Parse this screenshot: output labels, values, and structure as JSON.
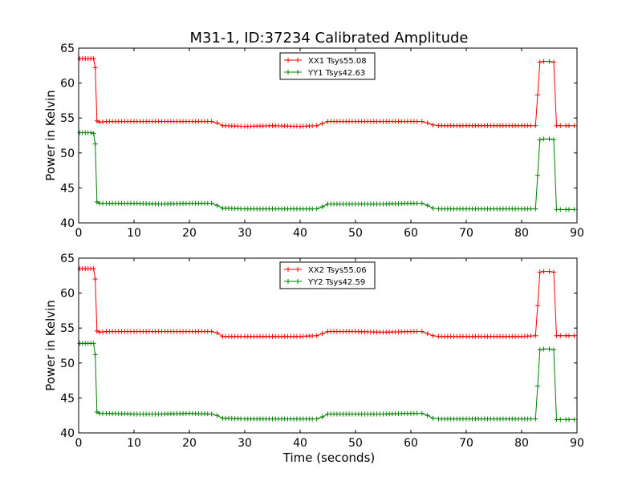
{
  "title": "M31-1, ID:37234 Calibrated Amplitude",
  "xlabel": "Time (seconds)",
  "chart_data": [
    {
      "type": "line",
      "title": "M31-1, ID:37234 Calibrated Amplitude",
      "xlabel": "",
      "ylabel": "Power in Kelvin",
      "xlim": [
        0,
        90
      ],
      "ylim": [
        40,
        65
      ],
      "xticks": [
        "0",
        "10",
        "20",
        "30",
        "40",
        "50",
        "60",
        "70",
        "80",
        "90"
      ],
      "yticks": [
        "40",
        "45",
        "50",
        "55",
        "60",
        "65"
      ],
      "legend_position": "top-center",
      "grid": false,
      "series": [
        {
          "name": "XX1 Tsys55.08",
          "color": "#ff0000",
          "marker": "plus",
          "points": [
            [
              0.2,
              63.5
            ],
            [
              0.7,
              63.5
            ],
            [
              1.2,
              63.5
            ],
            [
              1.7,
              63.5
            ],
            [
              2.2,
              63.5
            ],
            [
              2.7,
              63.5
            ],
            [
              3.0,
              62.2
            ],
            [
              3.3,
              54.6
            ],
            [
              3.8,
              54.4
            ],
            [
              5,
              54.5
            ],
            [
              10,
              54.5
            ],
            [
              15,
              54.5
            ],
            [
              20,
              54.5
            ],
            [
              24,
              54.5
            ],
            [
              25,
              54.3
            ],
            [
              26,
              53.9
            ],
            [
              30,
              53.8
            ],
            [
              35,
              53.9
            ],
            [
              40,
              53.8
            ],
            [
              43,
              53.9
            ],
            [
              44,
              54.2
            ],
            [
              45,
              54.5
            ],
            [
              50,
              54.5
            ],
            [
              55,
              54.5
            ],
            [
              60,
              54.5
            ],
            [
              62,
              54.5
            ],
            [
              63,
              54.3
            ],
            [
              64,
              54.0
            ],
            [
              65,
              53.9
            ],
            [
              70,
              53.9
            ],
            [
              75,
              53.9
            ],
            [
              80,
              53.9
            ],
            [
              82.5,
              53.9
            ],
            [
              82.9,
              58.3
            ],
            [
              83.3,
              63.0
            ],
            [
              84,
              63.1
            ],
            [
              85,
              63.1
            ],
            [
              85.8,
              63.0
            ],
            [
              86.3,
              53.9
            ],
            [
              87,
              53.9
            ],
            [
              88,
              53.9
            ],
            [
              89.5,
              53.9
            ]
          ]
        },
        {
          "name": "YY1 Tsys42.63",
          "color": "#008000",
          "marker": "plus",
          "points": [
            [
              0.2,
              52.9
            ],
            [
              0.7,
              52.9
            ],
            [
              1.2,
              52.9
            ],
            [
              1.7,
              52.9
            ],
            [
              2.2,
              52.9
            ],
            [
              2.7,
              52.8
            ],
            [
              3.0,
              51.3
            ],
            [
              3.3,
              43.0
            ],
            [
              3.8,
              42.8
            ],
            [
              5,
              42.8
            ],
            [
              10,
              42.8
            ],
            [
              15,
              42.7
            ],
            [
              20,
              42.8
            ],
            [
              24,
              42.8
            ],
            [
              25,
              42.5
            ],
            [
              26,
              42.1
            ],
            [
              30,
              42.0
            ],
            [
              35,
              42.0
            ],
            [
              40,
              42.0
            ],
            [
              43,
              42.0
            ],
            [
              44,
              42.3
            ],
            [
              45,
              42.7
            ],
            [
              50,
              42.7
            ],
            [
              55,
              42.7
            ],
            [
              60,
              42.8
            ],
            [
              62,
              42.8
            ],
            [
              63,
              42.5
            ],
            [
              64,
              42.1
            ],
            [
              65,
              42.0
            ],
            [
              70,
              42.0
            ],
            [
              75,
              42.0
            ],
            [
              80,
              42.0
            ],
            [
              82.5,
              42.0
            ],
            [
              82.9,
              46.8
            ],
            [
              83.3,
              51.9
            ],
            [
              84,
              52.0
            ],
            [
              85,
              52.0
            ],
            [
              85.8,
              51.9
            ],
            [
              86.3,
              41.9
            ],
            [
              87,
              41.9
            ],
            [
              88,
              41.9
            ],
            [
              89.5,
              41.9
            ]
          ]
        }
      ]
    },
    {
      "type": "line",
      "title": "",
      "xlabel": "Time (seconds)",
      "ylabel": "Power in Kelvin",
      "xlim": [
        0,
        90
      ],
      "ylim": [
        40,
        65
      ],
      "xticks": [
        "0",
        "10",
        "20",
        "30",
        "40",
        "50",
        "60",
        "70",
        "80",
        "90"
      ],
      "yticks": [
        "40",
        "45",
        "50",
        "55",
        "60",
        "65"
      ],
      "legend_position": "top-center",
      "grid": false,
      "series": [
        {
          "name": "XX2 Tsys55.06",
          "color": "#ff0000",
          "marker": "plus",
          "points": [
            [
              0.2,
              63.5
            ],
            [
              0.7,
              63.5
            ],
            [
              1.2,
              63.5
            ],
            [
              1.7,
              63.5
            ],
            [
              2.2,
              63.5
            ],
            [
              2.7,
              63.5
            ],
            [
              3.0,
              62.0
            ],
            [
              3.3,
              54.6
            ],
            [
              3.8,
              54.4
            ],
            [
              5,
              54.5
            ],
            [
              10,
              54.5
            ],
            [
              15,
              54.5
            ],
            [
              20,
              54.5
            ],
            [
              24,
              54.5
            ],
            [
              25,
              54.3
            ],
            [
              26,
              53.8
            ],
            [
              30,
              53.8
            ],
            [
              35,
              53.8
            ],
            [
              40,
              53.8
            ],
            [
              43,
              53.9
            ],
            [
              44,
              54.2
            ],
            [
              45,
              54.5
            ],
            [
              50,
              54.5
            ],
            [
              55,
              54.4
            ],
            [
              60,
              54.5
            ],
            [
              62,
              54.5
            ],
            [
              63,
              54.2
            ],
            [
              64,
              53.9
            ],
            [
              65,
              53.8
            ],
            [
              70,
              53.8
            ],
            [
              75,
              53.8
            ],
            [
              80,
              53.8
            ],
            [
              82.5,
              53.9
            ],
            [
              82.9,
              58.2
            ],
            [
              83.3,
              63.0
            ],
            [
              84,
              63.1
            ],
            [
              85,
              63.1
            ],
            [
              85.8,
              63.0
            ],
            [
              86.3,
              53.9
            ],
            [
              87,
              53.9
            ],
            [
              88,
              53.9
            ],
            [
              89.5,
              53.9
            ]
          ]
        },
        {
          "name": "YY2 Tsys42.59",
          "color": "#008000",
          "marker": "plus",
          "points": [
            [
              0.2,
              52.8
            ],
            [
              0.7,
              52.8
            ],
            [
              1.2,
              52.8
            ],
            [
              1.7,
              52.8
            ],
            [
              2.2,
              52.8
            ],
            [
              2.7,
              52.8
            ],
            [
              3.0,
              51.2
            ],
            [
              3.3,
              43.0
            ],
            [
              3.8,
              42.8
            ],
            [
              5,
              42.8
            ],
            [
              10,
              42.7
            ],
            [
              15,
              42.7
            ],
            [
              20,
              42.8
            ],
            [
              24,
              42.7
            ],
            [
              25,
              42.5
            ],
            [
              26,
              42.1
            ],
            [
              30,
              42.0
            ],
            [
              35,
              42.0
            ],
            [
              40,
              42.0
            ],
            [
              43,
              42.0
            ],
            [
              44,
              42.3
            ],
            [
              45,
              42.7
            ],
            [
              50,
              42.7
            ],
            [
              55,
              42.7
            ],
            [
              60,
              42.8
            ],
            [
              62,
              42.8
            ],
            [
              63,
              42.5
            ],
            [
              64,
              42.1
            ],
            [
              65,
              42.0
            ],
            [
              70,
              42.0
            ],
            [
              75,
              42.0
            ],
            [
              80,
              42.0
            ],
            [
              82.5,
              42.0
            ],
            [
              82.9,
              46.7
            ],
            [
              83.3,
              51.9
            ],
            [
              84,
              52.0
            ],
            [
              85,
              52.0
            ],
            [
              85.8,
              51.9
            ],
            [
              86.3,
              41.9
            ],
            [
              87,
              41.9
            ],
            [
              88,
              41.9
            ],
            [
              89.5,
              41.9
            ]
          ]
        }
      ]
    }
  ]
}
